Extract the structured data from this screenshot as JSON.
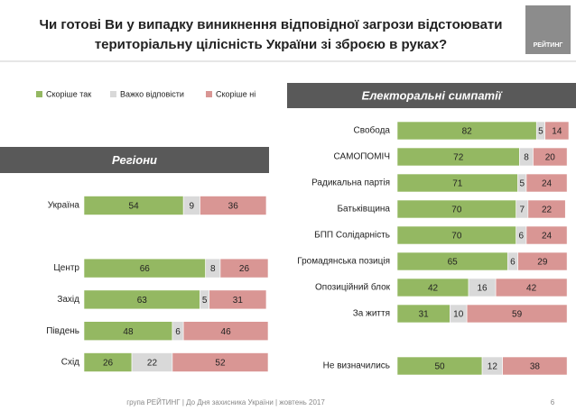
{
  "title_lines": [
    "Чи готові Ви у випадку виникнення відповідної загрози відстоювати",
    "територіальну цілісність України зі зброєю в руках?"
  ],
  "logo": "РЕЙТИНГ",
  "footer": "група РЕЙТИНГ  |  До Дня захисника України  |  жовтень 2017",
  "page_number": "6",
  "chart_data": [
    {
      "type": "stacked-bar-horizontal",
      "title": "Регіони",
      "categories": [
        "Україна",
        null,
        "Центр",
        "Захід",
        "Південь",
        "Схід"
      ],
      "series": [
        {
          "name": "Скоріше так",
          "color": "#94b862",
          "values": [
            54,
            null,
            66,
            63,
            48,
            26
          ]
        },
        {
          "name": "Важко відповісти",
          "color": "#d9d9d9",
          "values": [
            9,
            null,
            8,
            5,
            6,
            22
          ]
        },
        {
          "name": "Скоріше ні",
          "color": "#d99694",
          "values": [
            36,
            null,
            26,
            31,
            46,
            52
          ]
        }
      ]
    },
    {
      "type": "stacked-bar-horizontal",
      "title": "Електоральні симпатії",
      "categories": [
        "Свобода",
        "САМОПОМІЧ",
        "Радикальна партія",
        "Батьківщина",
        "БПП Солідарність",
        "Громадянська позиція",
        "Опозиційний блок",
        "За життя",
        null,
        "Не визначились"
      ],
      "series": [
        {
          "color": "#94b862",
          "values": [
            82,
            72,
            71,
            70,
            70,
            65,
            42,
            31,
            null,
            50
          ]
        },
        {
          "color": "#d9d9d9",
          "values": [
            5,
            8,
            5,
            7,
            6,
            6,
            16,
            10,
            null,
            12
          ]
        },
        {
          "color": "#d99694",
          "values": [
            14,
            20,
            24,
            22,
            24,
            29,
            42,
            59,
            null,
            38
          ]
        }
      ]
    }
  ]
}
